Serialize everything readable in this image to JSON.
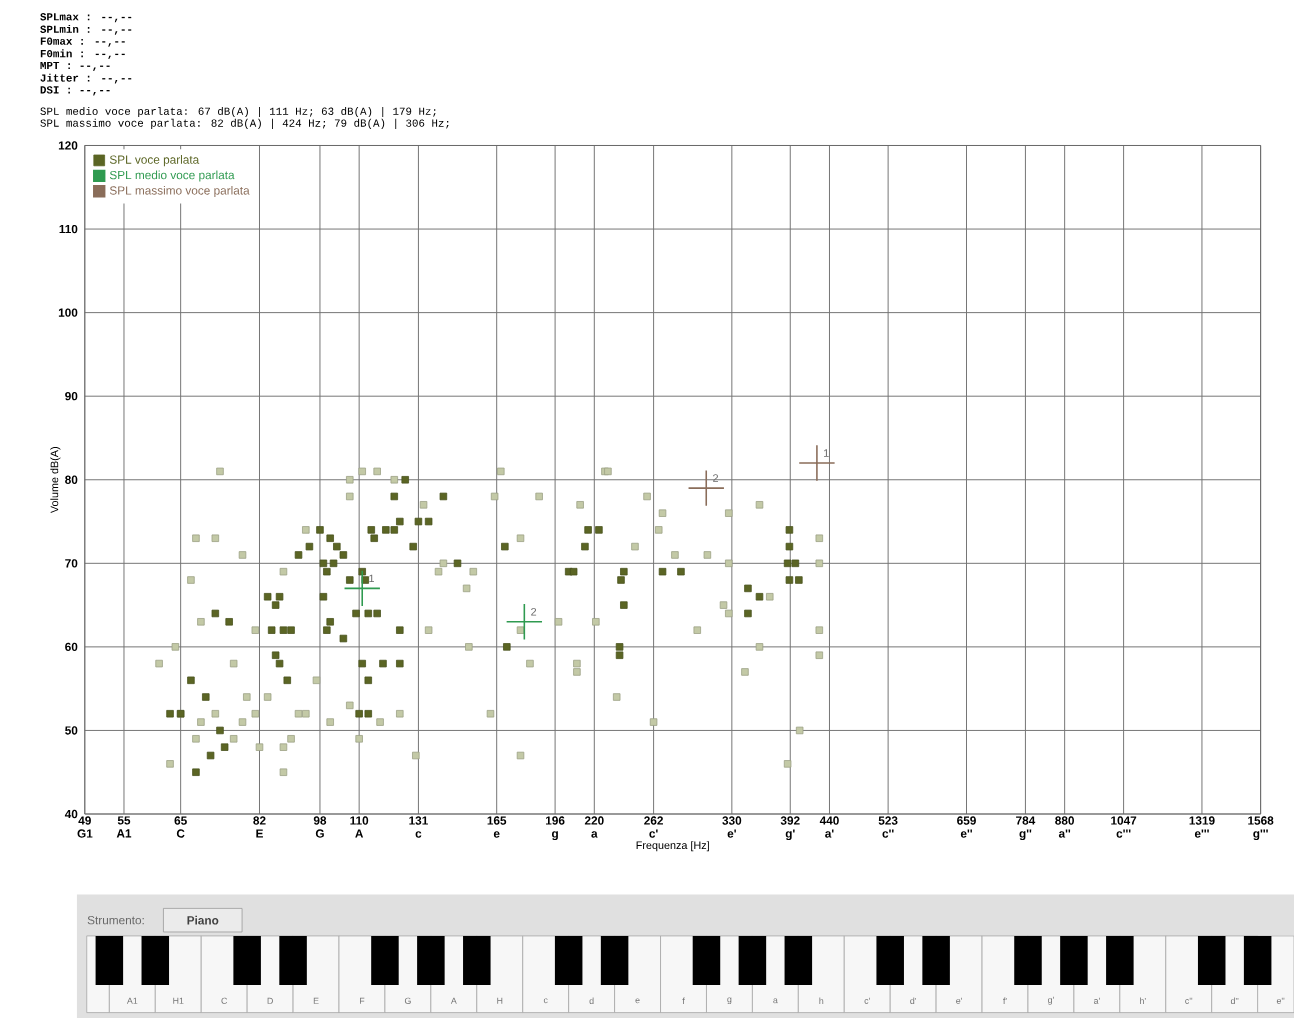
{
  "chart_data": {
    "type": "scatter",
    "xlabel": "Frequenza [Hz]",
    "ylabel": "Volume dB(A)",
    "log": "x",
    "grid": true,
    "legend": "top left",
    "marker": "square",
    "xlim": [
      49,
      1568
    ],
    "xticks": [
      {
        "value": 49,
        "label": "49 G1"
      },
      {
        "value": 55,
        "label": "55 A1"
      },
      {
        "value": 65,
        "label": "65 C"
      },
      {
        "value": 82,
        "label": "82 E"
      },
      {
        "value": 98,
        "label": "98 G"
      },
      {
        "value": 110,
        "label": "110 A"
      },
      {
        "value": 131,
        "label": "131 c"
      },
      {
        "value": 165,
        "label": "165 e"
      },
      {
        "value": 196,
        "label": "196 g"
      },
      {
        "value": 220,
        "label": "220 a"
      },
      {
        "value": 262,
        "label": "262 c'"
      },
      {
        "value": 330,
        "label": "330 e'"
      },
      {
        "value": 392,
        "label": "392 g'"
      },
      {
        "value": 440,
        "label": "440 a'"
      },
      {
        "value": 523,
        "label": "523 c''"
      },
      {
        "value": 659,
        "label": "659 e''"
      },
      {
        "value": 784,
        "label": "784 g''"
      },
      {
        "value": 880,
        "label": "880 a''"
      },
      {
        "value": 1047,
        "label": "1047 c'''"
      },
      {
        "value": 1319,
        "label": "1319 e'''"
      },
      {
        "value": 1568,
        "label": "1568 g'''"
      }
    ],
    "ylim": [
      40,
      120
    ],
    "yticks": [
      40,
      50,
      60,
      70,
      80,
      90,
      100,
      110,
      120
    ],
    "series": [
      {
        "color": "#c3c9a6",
        "x": [
          73,
          61,
          64,
          68,
          72,
          78,
          67,
          69,
          65,
          69,
          72,
          68,
          63,
          76,
          78,
          81,
          82,
          88,
          88,
          90,
          92,
          94,
          101,
          107,
          111,
          116,
          122,
          107,
          94,
          88,
          81,
          76,
          79,
          84,
          97,
          107,
          110,
          117,
          124,
          130,
          135,
          141,
          151,
          154,
          164,
          167,
          177,
          187,
          177,
          182,
          198,
          209,
          152,
          162,
          177,
          133,
          139,
          227,
          257,
          269,
          327,
          358,
          266,
          279,
          307,
          327,
          248,
          211,
          209,
          235,
          262,
          298,
          322,
          427,
          427,
          427,
          427,
          389,
          403,
          343,
          358,
          369,
          327,
          221,
          229
        ],
        "values": [
          81,
          58,
          60,
          73,
          73,
          71,
          68,
          63,
          52,
          51,
          52,
          49,
          46,
          49,
          51,
          52,
          48,
          48,
          45,
          49,
          52,
          52,
          51,
          80,
          81,
          81,
          80,
          78,
          74,
          69,
          62,
          58,
          54,
          54,
          56,
          53,
          49,
          51,
          52,
          47,
          62,
          70,
          67,
          69,
          78,
          81,
          73,
          78,
          62,
          58,
          63,
          58,
          60,
          52,
          47,
          77,
          69,
          81,
          78,
          76,
          76,
          77,
          74,
          71,
          71,
          70,
          72,
          77,
          57,
          54,
          51,
          62,
          65,
          73,
          70,
          62,
          59,
          46,
          50,
          57,
          60,
          66,
          64,
          63,
          81
        ]
      },
      {
        "name": "SPL voce parlata",
        "color": "#5b6524",
        "x": [
          63,
          65,
          67,
          70,
          73,
          72,
          75,
          74,
          71,
          68,
          84,
          86,
          87,
          85,
          88,
          90,
          86,
          87,
          89,
          92,
          95,
          98,
          101,
          99,
          100,
          102,
          103,
          105,
          107,
          99,
          101,
          100,
          105,
          109,
          112,
          111,
          114,
          115,
          119,
          122,
          124,
          126,
          122,
          113,
          116,
          111,
          113,
          118,
          110,
          113,
          124,
          124,
          129,
          131,
          135,
          141,
          147,
          169,
          170,
          216,
          223,
          214,
          204,
          207,
          240,
          238,
          240,
          237,
          237,
          269,
          284,
          346,
          346,
          358,
          391,
          391,
          389,
          398,
          402,
          391
        ],
        "values": [
          52,
          52,
          56,
          54,
          50,
          64,
          63,
          48,
          47,
          45,
          66,
          65,
          66,
          62,
          62,
          62,
          59,
          58,
          56,
          71,
          72,
          74,
          73,
          70,
          69,
          70,
          72,
          71,
          68,
          66,
          63,
          62,
          61,
          64,
          68,
          69,
          74,
          73,
          74,
          74,
          75,
          80,
          78,
          64,
          64,
          58,
          56,
          58,
          52,
          52,
          58,
          62,
          72,
          75,
          75,
          78,
          70,
          72,
          60,
          74,
          74,
          72,
          69,
          69,
          69,
          68,
          65,
          60,
          59,
          69,
          69,
          67,
          64,
          66,
          74,
          72,
          70,
          70,
          68,
          68
        ]
      },
      {
        "name": "SPL medio voce parlata",
        "color": "#2f9a50",
        "marker": "cross",
        "x": [
          111,
          179
        ],
        "values": [
          67,
          63
        ]
      },
      {
        "name": "SPL massimo voce parlata",
        "color": "#8a6d5a",
        "marker": "cross",
        "x": [
          424,
          306
        ],
        "values": [
          82,
          79
        ]
      }
    ],
    "annotations": [
      "SPLmax  : --,--",
      "SPLmin  : --,--",
      "F0max   : --,--",
      "F0min   : --,--",
      "MPT     : --,--",
      "Jitter  : --,--",
      "DSI     : --,--",
      "SPL medio voce parlata: 67 dB(A) | 111 Hz; 63 dB(A) | 179 Hz;",
      "SPL massimo voce parlata:       82 dB(A) | 424 Hz; 79 dB(A) | 306 Hz;",
      "Strumento:",
      "Piano",
      "A1",
      "H1",
      "C",
      "D",
      "E",
      "F",
      "G",
      "A",
      "H",
      "c",
      "d",
      "e",
      "f",
      "g",
      "a",
      "h",
      "c'",
      "d'",
      "e'",
      "f'",
      "g'",
      "a'",
      "h'",
      "c''",
      "d''",
      "e''",
      {
        "text": "1",
        "x": 111,
        "y": 67
      },
      {
        "text": "2",
        "x": 179,
        "y": 63
      },
      {
        "text": "1",
        "x": 424,
        "y": 82
      },
      {
        "text": "2",
        "x": 306,
        "y": 79
      }
    ]
  }
}
